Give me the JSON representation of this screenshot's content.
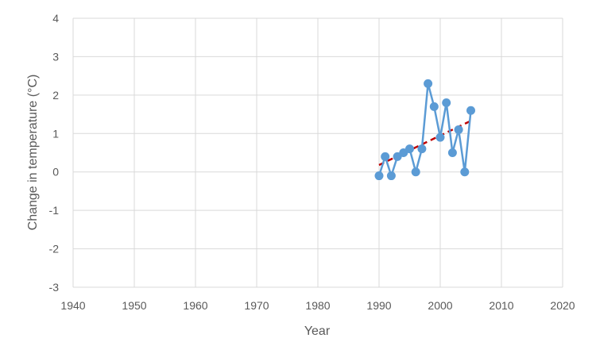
{
  "chart_data": {
    "type": "scatter",
    "title": "",
    "xlabel": "Year",
    "ylabel": "Change in temperature (°C)",
    "xlim": [
      1940,
      2020
    ],
    "ylim": [
      -3,
      4
    ],
    "x_ticks": [
      "1940",
      "1950",
      "1960",
      "1970",
      "1980",
      "1990",
      "2000",
      "2010",
      "2020"
    ],
    "y_ticks": [
      "-3",
      "-2",
      "-1",
      "0",
      "1",
      "2",
      "3",
      "4"
    ],
    "grid": true,
    "legend": "none",
    "series": [
      {
        "style": "line-with-markers",
        "color": "#5b9bd5",
        "x": [
          1990,
          1991,
          1992,
          1993,
          1994,
          1995,
          1996,
          1997,
          1998,
          1999,
          2000,
          2001,
          2002,
          2003,
          2004,
          2005
        ],
        "y": [
          -0.1,
          0.4,
          -0.1,
          0.4,
          0.5,
          0.6,
          0.0,
          0.6,
          2.3,
          1.7,
          0.9,
          1.8,
          0.5,
          1.1,
          0.0,
          1.6
        ]
      }
    ],
    "trendline": {
      "type": "linear",
      "style": "dashed",
      "color": "#c00000",
      "x": [
        1990,
        2005
      ],
      "y": [
        0.18,
        1.33
      ]
    }
  }
}
